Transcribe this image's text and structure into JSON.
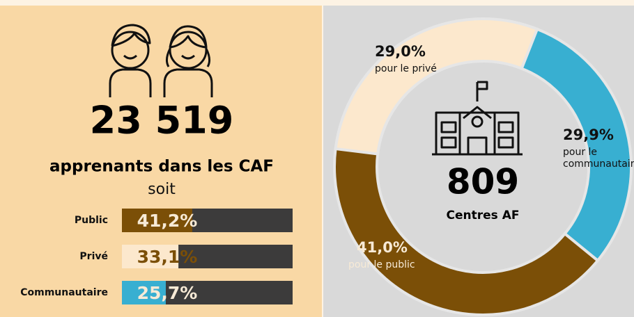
{
  "chart_data": [
    {
      "type": "bar",
      "orientation": "horizontal",
      "headline": {
        "value": 23519,
        "label": "23 519"
      },
      "title": "apprenants dans les CAF",
      "subtitle": "soit",
      "categories": [
        "Public",
        "Privé",
        "Communautaire"
      ],
      "values": [
        41.2,
        33.1,
        25.7
      ],
      "value_labels": [
        "41,2%",
        "33,1%",
        "25,7%"
      ],
      "colors": [
        "#7b4f07",
        "#fce8cd",
        "#38afd1"
      ],
      "track_color": "#3c3b3b",
      "xlim": [
        0,
        100
      ]
    },
    {
      "type": "donut",
      "center_value": {
        "value": 809,
        "label": "809"
      },
      "center_label": "Centres AF",
      "categories": [
        [
          "pour le privé"
        ],
        [
          "pour le",
          "communautaire"
        ],
        [
          "pour le public"
        ]
      ],
      "values": [
        29.0,
        29.9,
        41.0
      ],
      "value_labels": [
        "29,0%",
        "29,9%",
        "41,0%"
      ],
      "colors": [
        "#fce8cd",
        "#38afd1",
        "#7b4f07"
      ]
    }
  ]
}
